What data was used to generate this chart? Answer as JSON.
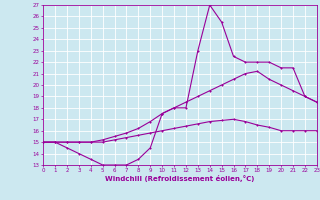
{
  "xlabel": "Windchill (Refroidissement éolien,°C)",
  "bg_color": "#cce8f0",
  "line_color": "#990099",
  "grid_color": "#ffffff",
  "xlim": [
    0,
    23
  ],
  "ylim": [
    13,
    27
  ],
  "xticks": [
    0,
    1,
    2,
    3,
    4,
    5,
    6,
    7,
    8,
    9,
    10,
    11,
    12,
    13,
    14,
    15,
    16,
    17,
    18,
    19,
    20,
    21,
    22,
    23
  ],
  "yticks": [
    13,
    14,
    15,
    16,
    17,
    18,
    19,
    20,
    21,
    22,
    23,
    24,
    25,
    26,
    27
  ],
  "curve1_x": [
    0,
    1,
    2,
    3,
    4,
    5,
    6,
    7,
    8,
    9,
    10,
    11,
    12,
    13,
    14,
    15,
    16,
    17,
    18,
    19,
    20,
    21,
    22,
    23
  ],
  "curve1_y": [
    15.0,
    15.0,
    14.5,
    14.0,
    13.5,
    13.0,
    13.0,
    13.0,
    13.5,
    14.5,
    17.5,
    18.0,
    18.0,
    23.0,
    27.0,
    25.5,
    22.5,
    22.0,
    22.0,
    22.0,
    21.5,
    21.5,
    19.0,
    18.5
  ],
  "curve2_x": [
    0,
    1,
    2,
    3,
    4,
    5,
    6,
    7,
    8,
    9,
    10,
    11,
    12,
    13,
    14,
    15,
    16,
    17,
    18,
    19,
    20,
    21,
    22,
    23
  ],
  "curve2_y": [
    15.0,
    15.0,
    15.0,
    15.0,
    15.0,
    15.2,
    15.5,
    15.8,
    16.2,
    16.8,
    17.5,
    18.0,
    18.5,
    19.0,
    19.5,
    20.0,
    20.5,
    21.0,
    21.2,
    20.5,
    20.0,
    19.5,
    19.0,
    18.5
  ],
  "curve3_x": [
    0,
    1,
    2,
    3,
    4,
    5,
    6,
    7,
    8,
    9,
    10,
    11,
    12,
    13,
    14,
    15,
    16,
    17,
    18,
    19,
    20,
    21,
    22,
    23
  ],
  "curve3_y": [
    15.0,
    15.0,
    15.0,
    15.0,
    15.0,
    15.0,
    15.2,
    15.4,
    15.6,
    15.8,
    16.0,
    16.2,
    16.4,
    16.6,
    16.8,
    16.9,
    17.0,
    16.8,
    16.5,
    16.3,
    16.0,
    16.0,
    16.0,
    16.0
  ],
  "tick_fontsize": 4.0,
  "xlabel_fontsize": 5.0,
  "linewidth": 0.8,
  "markersize": 2.0
}
